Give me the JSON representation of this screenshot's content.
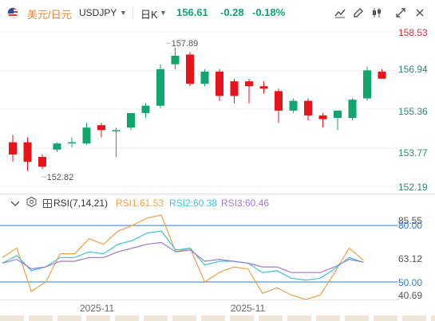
{
  "toolbar": {
    "symbol_cn": "美元/日元",
    "symbol_en": "USDJPY",
    "period": "日K",
    "price": "156.61",
    "change": "-0.28",
    "change_pct": "-0.18%",
    "icons": [
      "line-chart-icon",
      "edit-icon",
      "settings-sliders-icon",
      "fullscreen-icon",
      "close-icon"
    ]
  },
  "price_axis": {
    "labels": [
      "158.53",
      "156.94",
      "155.36",
      "153.77",
      "152.19"
    ],
    "highlight_label": "156.94"
  },
  "annotations": {
    "high": "157.89",
    "low": "152.82"
  },
  "rsi": {
    "title": "RSI(7,14,21)",
    "rsi1": "RSI1:61.53",
    "rsi2": "RSI2:60.38",
    "rsi3": "RSI3:60.46",
    "axis_labels": [
      "85.55",
      "80.00",
      "63.12",
      "50.00",
      "40.69"
    ]
  },
  "x_axis": {
    "labels": [
      "2025-11",
      "2025-11"
    ]
  },
  "colors": {
    "up": "#11a66f",
    "down": "#e8131b",
    "rsi1": "#f0a040",
    "rsi2": "#3fc2d8",
    "rsi3": "#9b7bd0",
    "level": "#2a7bd8"
  },
  "chart_data": [
    {
      "type": "candlestick",
      "title": "USDJPY 日K",
      "ylim": [
        152.19,
        158.53
      ],
      "candles": [
        {
          "o": 154.0,
          "h": 154.3,
          "l": 153.2,
          "c": 153.5
        },
        {
          "o": 154.0,
          "h": 154.2,
          "l": 152.82,
          "c": 153.2
        },
        {
          "o": 153.4,
          "h": 153.5,
          "l": 152.9,
          "c": 153.0
        },
        {
          "o": 153.7,
          "h": 154.0,
          "l": 153.6,
          "c": 153.95
        },
        {
          "o": 153.95,
          "h": 154.2,
          "l": 153.8,
          "c": 154.0
        },
        {
          "o": 153.95,
          "h": 154.8,
          "l": 153.9,
          "c": 154.6
        },
        {
          "o": 154.7,
          "h": 154.8,
          "l": 154.2,
          "c": 154.5
        },
        {
          "o": 154.5,
          "h": 154.6,
          "l": 153.4,
          "c": 154.5
        },
        {
          "o": 154.6,
          "h": 155.2,
          "l": 154.5,
          "c": 155.2
        },
        {
          "o": 155.2,
          "h": 155.6,
          "l": 155.0,
          "c": 155.5
        },
        {
          "o": 155.5,
          "h": 157.2,
          "l": 155.4,
          "c": 157.0
        },
        {
          "o": 157.2,
          "h": 157.89,
          "l": 157.0,
          "c": 157.55
        },
        {
          "o": 157.6,
          "h": 157.7,
          "l": 156.3,
          "c": 156.4
        },
        {
          "o": 156.4,
          "h": 157.0,
          "l": 156.3,
          "c": 156.9
        },
        {
          "o": 156.9,
          "h": 157.0,
          "l": 155.7,
          "c": 155.9
        },
        {
          "o": 156.5,
          "h": 156.6,
          "l": 155.6,
          "c": 155.9
        },
        {
          "o": 156.5,
          "h": 156.6,
          "l": 155.6,
          "c": 156.3
        },
        {
          "o": 156.3,
          "h": 156.5,
          "l": 156.0,
          "c": 156.2
        },
        {
          "o": 156.1,
          "h": 156.2,
          "l": 154.8,
          "c": 155.3
        },
        {
          "o": 155.3,
          "h": 155.8,
          "l": 155.2,
          "c": 155.7
        },
        {
          "o": 155.7,
          "h": 155.8,
          "l": 154.9,
          "c": 155.1
        },
        {
          "o": 155.1,
          "h": 155.2,
          "l": 154.6,
          "c": 154.95
        },
        {
          "o": 155.0,
          "h": 155.3,
          "l": 154.5,
          "c": 155.3
        },
        {
          "o": 155.0,
          "h": 155.8,
          "l": 154.9,
          "c": 155.75
        },
        {
          "o": 155.8,
          "h": 157.1,
          "l": 155.7,
          "c": 156.95
        },
        {
          "o": 156.9,
          "h": 157.0,
          "l": 156.6,
          "c": 156.61
        }
      ]
    },
    {
      "type": "line",
      "title": "RSI(7,14,21)",
      "ylim": [
        40.69,
        85.55
      ],
      "series": [
        {
          "name": "RSI1",
          "values": [
            63,
            68,
            45,
            50,
            65,
            65,
            73,
            70,
            77,
            80,
            84,
            85.5,
            66,
            68,
            50,
            55,
            58,
            57,
            44,
            47,
            43,
            40.7,
            43,
            55,
            68,
            61.5
          ]
        },
        {
          "name": "RSI2",
          "values": [
            60,
            64,
            56,
            58,
            63,
            63,
            66,
            65,
            70,
            72,
            76,
            77,
            67,
            68,
            59,
            61,
            61,
            60,
            55,
            56,
            52,
            51,
            52,
            57,
            63,
            60.4
          ]
        },
        {
          "name": "RSI3",
          "values": [
            60,
            62,
            57,
            58,
            61,
            61,
            63,
            63,
            66,
            68,
            70,
            71,
            66,
            67,
            61,
            62,
            61,
            60,
            58,
            58,
            55,
            55,
            55,
            58,
            62,
            60.5
          ]
        }
      ],
      "levels": [
        80.0,
        50.0
      ]
    }
  ]
}
